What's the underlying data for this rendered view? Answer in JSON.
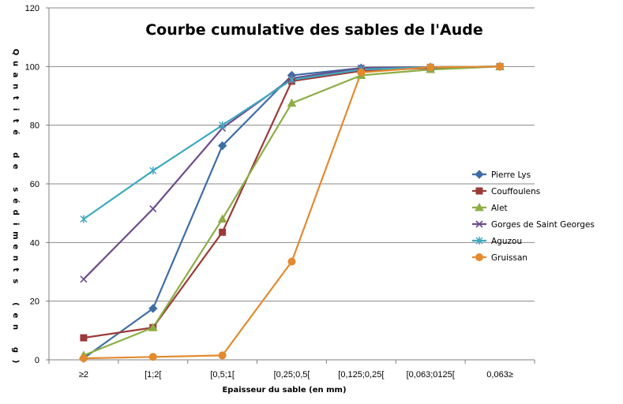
{
  "chart_data": {
    "type": "line",
    "title": "Courbe cumulative des sables de l'Aude",
    "xlabel": "Epaisseur du sable (en mm)",
    "ylabel": "Quantité de sédiments (en g)",
    "categories": [
      "≥2",
      "[1;2[",
      "[0,5;1[",
      "[0,25;0,5[",
      "[0,125;0,25[",
      "[0,063;0125[",
      "0,063≥"
    ],
    "ylim": [
      0,
      120
    ],
    "yticks": [
      0,
      20,
      40,
      60,
      80,
      100,
      120
    ],
    "grid": "horizontal",
    "legend_position": "right",
    "series": [
      {
        "name": "Pierre Lys",
        "color": "#3e6ea6",
        "marker": "diamond",
        "values": [
          0.5,
          17.5,
          73,
          97,
          99.5,
          99.8,
          100
        ]
      },
      {
        "name": "Couffoulens",
        "color": "#9b3b39",
        "marker": "square",
        "values": [
          7.5,
          11,
          43.5,
          95,
          98.5,
          99.5,
          100
        ]
      },
      {
        "name": "Alet",
        "color": "#8cae45",
        "marker": "triangle",
        "values": [
          1.5,
          11,
          48,
          87.5,
          97,
          99,
          100
        ]
      },
      {
        "name": "Gorges de Saint Georges",
        "color": "#6d4c8c",
        "marker": "x",
        "values": [
          27.5,
          51.5,
          79,
          96,
          99.5,
          99.8,
          100
        ]
      },
      {
        "name": "Aguzou",
        "color": "#3ea9c0",
        "marker": "star",
        "values": [
          48,
          64.5,
          80,
          95.5,
          99,
          99.8,
          100
        ]
      },
      {
        "name": "Gruissan",
        "color": "#e38a2e",
        "marker": "circle",
        "values": [
          0.5,
          1,
          1.5,
          33.5,
          98,
          99.8,
          100
        ]
      }
    ]
  }
}
